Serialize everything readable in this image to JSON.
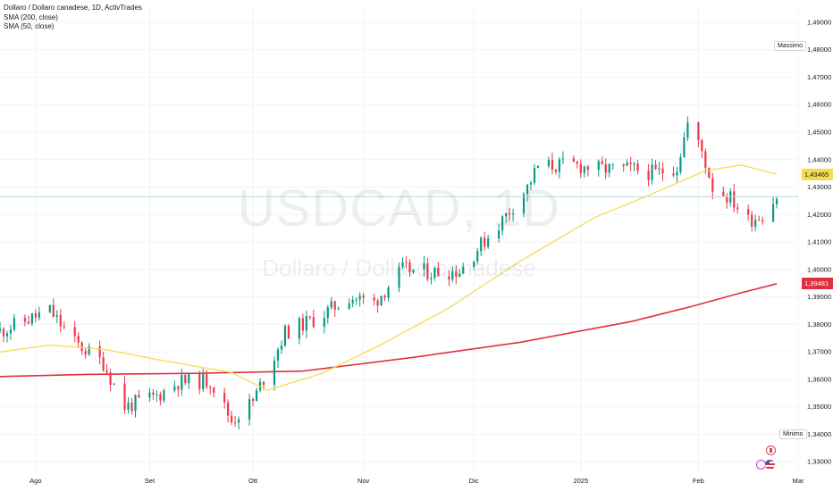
{
  "header": {
    "title": "Dollaro / Dollaro canadese, 1D, ActivTrades",
    "indicators": [
      "SMA (200, close)",
      "SMA (50, close)"
    ]
  },
  "watermark": {
    "symbol": "USDCAD, 1D",
    "name": "Dollaro / Dollaro canadese"
  },
  "colors": {
    "up": "#089981",
    "down": "#f23645",
    "sma200": "#e03040",
    "sma50": "#f5dc4a",
    "current_line": "#b2dfdb"
  },
  "markers": {
    "max_label": "Massimo",
    "min_label": "Minimo"
  },
  "price_labels": {
    "sma50": "1,43465",
    "sma200": "1,39481"
  },
  "chart_data": {
    "type": "candlestick",
    "title": "Dollaro / Dollaro canadese, 1D, ActivTrades",
    "ylim": [
      1.3265,
      1.4955
    ],
    "yticks": [
      "1,49000",
      "1,48000",
      "1,47000",
      "1,46000",
      "1,45000",
      "1,44000",
      "1,43000",
      "1,42000",
      "1,41000",
      "1,40000",
      "1,39000",
      "1,38000",
      "1,37000",
      "1,36000",
      "1,35000",
      "1,34000",
      "1,33000"
    ],
    "x_start": "2024-07-22",
    "x_end": "2025-03-03",
    "xticks": [
      {
        "date": "2024-08-01",
        "label": "Ago"
      },
      {
        "date": "2024-09-02",
        "label": "Set"
      },
      {
        "date": "2024-10-01",
        "label": "Ott"
      },
      {
        "date": "2024-11-01",
        "label": "Nov"
      },
      {
        "date": "2024-12-02",
        "label": "Dic"
      },
      {
        "date": "2025-01-01",
        "label": "2025"
      },
      {
        "date": "2025-02-03",
        "label": "Feb"
      },
      {
        "date": "2025-03-03",
        "label": "Mar"
      }
    ],
    "current_price": 1.4265,
    "grid": true,
    "series": [
      {
        "name": "SMA (200, close)",
        "type": "line",
        "x": [
          "2024-07-22",
          "2024-08-15",
          "2024-09-15",
          "2024-10-15",
          "2024-11-15",
          "2024-12-15",
          "2025-01-15",
          "2025-02-01",
          "2025-02-15",
          "2025-02-25"
        ],
        "values": [
          1.361,
          1.3618,
          1.3622,
          1.363,
          1.368,
          1.3735,
          1.381,
          1.3865,
          1.3915,
          1.3948
        ]
      },
      {
        "name": "SMA (50, close)",
        "type": "line",
        "x": [
          "2024-07-22",
          "2024-08-05",
          "2024-08-20",
          "2024-09-05",
          "2024-09-25",
          "2024-10-05",
          "2024-10-20",
          "2024-11-05",
          "2024-11-25",
          "2024-12-15",
          "2025-01-05",
          "2025-01-20",
          "2025-02-05",
          "2025-02-15",
          "2025-02-25"
        ],
        "values": [
          1.37,
          1.3725,
          1.371,
          1.367,
          1.3625,
          1.356,
          1.362,
          1.372,
          1.386,
          1.403,
          1.419,
          1.427,
          1.436,
          1.438,
          1.4347
        ]
      }
    ]
  }
}
